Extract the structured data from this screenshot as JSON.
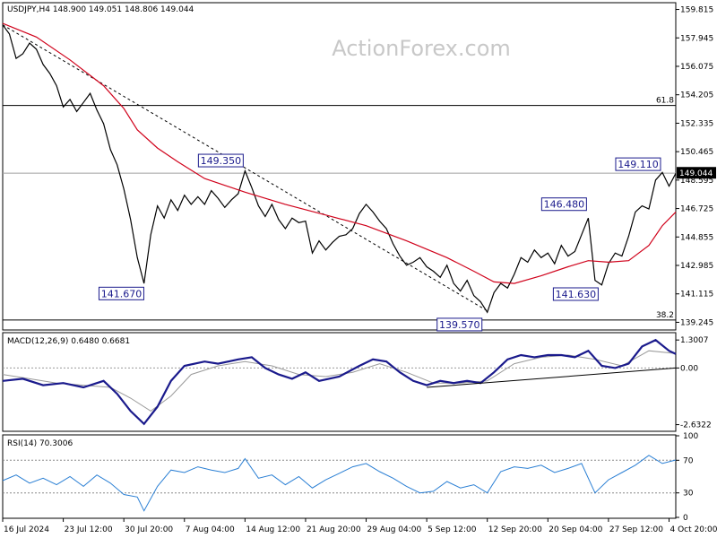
{
  "chart_data": {
    "type": "line",
    "symbol_header": "USDJPY,H4  148.900 149.051 148.806 149.044",
    "watermark": "ActionForex.com",
    "current_price": {
      "value": 149.044,
      "label": "149.044"
    },
    "price_axis": {
      "ylim": [
        138.8,
        160.2
      ],
      "ticks": [
        {
          "v": 159.815,
          "label": "159.815"
        },
        {
          "v": 157.945,
          "label": "157.945"
        },
        {
          "v": 156.075,
          "label": "156.075"
        },
        {
          "v": 154.205,
          "label": "154.205"
        },
        {
          "v": 152.335,
          "label": "152.335"
        },
        {
          "v": 150.465,
          "label": "150.465"
        },
        {
          "v": 148.595,
          "label": "148.595"
        },
        {
          "v": 146.725,
          "label": "146.725"
        },
        {
          "v": 144.855,
          "label": "144.855"
        },
        {
          "v": 142.985,
          "label": "142.985"
        },
        {
          "v": 141.115,
          "label": "141.115"
        },
        {
          "v": 139.245,
          "label": "139.245"
        }
      ]
    },
    "x_axis": {
      "range": [
        0,
        100
      ],
      "labels": [
        {
          "x": 0,
          "label": "16 Jul 2024"
        },
        {
          "x": 9,
          "label": "23 Jul 12:00"
        },
        {
          "x": 18,
          "label": "30 Jul 20:00"
        },
        {
          "x": 27,
          "label": "7 Aug 04:00"
        },
        {
          "x": 36,
          "label": "14 Aug 12:00"
        },
        {
          "x": 45,
          "label": "21 Aug 20:00"
        },
        {
          "x": 54,
          "label": "29 Aug 04:00"
        },
        {
          "x": 63,
          "label": "5 Sep 12:00"
        },
        {
          "x": 72,
          "label": "12 Sep 20:00"
        },
        {
          "x": 81,
          "label": "20 Sep 04:00"
        },
        {
          "x": 90,
          "label": "27 Sep 12:00"
        },
        {
          "x": 99,
          "label": "4 Oct 20:00"
        }
      ]
    },
    "price_series": [
      [
        0,
        158.8
      ],
      [
        1,
        158.2
      ],
      [
        2,
        156.6
      ],
      [
        3,
        156.9
      ],
      [
        4,
        157.6
      ],
      [
        5,
        157.2
      ],
      [
        6,
        156.2
      ],
      [
        7,
        155.6
      ],
      [
        8,
        154.8
      ],
      [
        9,
        153.4
      ],
      [
        10,
        153.9
      ],
      [
        11,
        153.1
      ],
      [
        12,
        153.7
      ],
      [
        13,
        154.3
      ],
      [
        14,
        153.2
      ],
      [
        15,
        152.3
      ],
      [
        16,
        150.6
      ],
      [
        17,
        149.6
      ],
      [
        18,
        148.0
      ],
      [
        19,
        146.0
      ],
      [
        20,
        143.5
      ],
      [
        21,
        141.8
      ],
      [
        22,
        145.0
      ],
      [
        23,
        146.9
      ],
      [
        24,
        146.1
      ],
      [
        25,
        147.3
      ],
      [
        26,
        146.6
      ],
      [
        27,
        147.6
      ],
      [
        28,
        147.0
      ],
      [
        29,
        147.5
      ],
      [
        30,
        147.0
      ],
      [
        31,
        147.9
      ],
      [
        32,
        147.4
      ],
      [
        33,
        146.8
      ],
      [
        34,
        147.3
      ],
      [
        35,
        147.7
      ],
      [
        36,
        149.2
      ],
      [
        37,
        148.1
      ],
      [
        38,
        146.9
      ],
      [
        39,
        146.2
      ],
      [
        40,
        147.0
      ],
      [
        41,
        146.0
      ],
      [
        42,
        145.4
      ],
      [
        43,
        146.1
      ],
      [
        44,
        145.8
      ],
      [
        45,
        145.9
      ],
      [
        46,
        143.8
      ],
      [
        47,
        144.6
      ],
      [
        48,
        144.0
      ],
      [
        49,
        144.5
      ],
      [
        50,
        144.9
      ],
      [
        51,
        145.0
      ],
      [
        52,
        145.4
      ],
      [
        53,
        146.4
      ],
      [
        54,
        147.0
      ],
      [
        55,
        146.5
      ],
      [
        56,
        145.9
      ],
      [
        57,
        145.4
      ],
      [
        58,
        144.4
      ],
      [
        59,
        143.6
      ],
      [
        60,
        143.0
      ],
      [
        61,
        143.2
      ],
      [
        62,
        143.5
      ],
      [
        63,
        142.9
      ],
      [
        64,
        142.6
      ],
      [
        65,
        142.2
      ],
      [
        66,
        143.0
      ],
      [
        67,
        141.8
      ],
      [
        68,
        141.3
      ],
      [
        69,
        142.0
      ],
      [
        70,
        141.0
      ],
      [
        71,
        140.6
      ],
      [
        72,
        139.9
      ],
      [
        73,
        141.2
      ],
      [
        74,
        141.8
      ],
      [
        75,
        141.5
      ],
      [
        76,
        142.4
      ],
      [
        77,
        143.5
      ],
      [
        78,
        143.2
      ],
      [
        79,
        144.0
      ],
      [
        80,
        143.5
      ],
      [
        81,
        143.8
      ],
      [
        82,
        143.1
      ],
      [
        83,
        144.3
      ],
      [
        84,
        143.6
      ],
      [
        85,
        143.9
      ],
      [
        86,
        145.0
      ],
      [
        87,
        146.1
      ],
      [
        88,
        142.0
      ],
      [
        89,
        141.7
      ],
      [
        90,
        143.1
      ],
      [
        91,
        143.8
      ],
      [
        92,
        143.6
      ],
      [
        93,
        144.9
      ],
      [
        94,
        146.5
      ],
      [
        95,
        146.9
      ],
      [
        96,
        146.7
      ],
      [
        97,
        148.6
      ],
      [
        98,
        149.1
      ],
      [
        99,
        148.2
      ],
      [
        100,
        149.04
      ]
    ],
    "ma_series": [
      [
        0,
        158.9
      ],
      [
        5,
        158.0
      ],
      [
        10,
        156.5
      ],
      [
        15,
        154.8
      ],
      [
        18,
        153.3
      ],
      [
        20,
        151.9
      ],
      [
        23,
        150.7
      ],
      [
        26,
        149.8
      ],
      [
        30,
        148.7
      ],
      [
        36,
        147.8
      ],
      [
        42,
        147.0
      ],
      [
        48,
        146.3
      ],
      [
        54,
        145.6
      ],
      [
        60,
        144.6
      ],
      [
        66,
        143.5
      ],
      [
        70,
        142.6
      ],
      [
        73,
        141.9
      ],
      [
        76,
        141.8
      ],
      [
        80,
        142.3
      ],
      [
        84,
        142.9
      ],
      [
        87,
        143.3
      ],
      [
        90,
        143.2
      ],
      [
        93,
        143.3
      ],
      [
        96,
        144.3
      ],
      [
        98,
        145.6
      ],
      [
        100,
        146.5
      ]
    ],
    "trendline": {
      "from": [
        0,
        158.8
      ],
      "to": [
        72,
        140.0
      ]
    },
    "horizontal_lines": [
      {
        "price": 153.5,
        "label": "61.8"
      },
      {
        "price": 149.05,
        "label": ""
      },
      {
        "price": 139.4,
        "label": "38.2"
      }
    ],
    "pivot_labels": [
      {
        "x": 21.5,
        "price": 141.67,
        "label": "141.670",
        "anchor": "below"
      },
      {
        "x": 36,
        "price": 149.35,
        "label": "149.350",
        "anchor": "above"
      },
      {
        "x": 72,
        "price": 139.57,
        "label": "139.570",
        "anchor": "below"
      },
      {
        "x": 87,
        "price": 146.48,
        "label": "146.480",
        "anchor": "above"
      },
      {
        "x": 89,
        "price": 141.63,
        "label": "141.630",
        "anchor": "below"
      },
      {
        "x": 98,
        "price": 149.11,
        "label": "149.110",
        "anchor": "above"
      }
    ],
    "macd": {
      "title": "MACD(12,26,9) 0.6480 0.6681",
      "ylim": [
        -2.9,
        1.6
      ],
      "ticks": [
        {
          "v": 1.3007,
          "label": "1.3007"
        },
        {
          "v": 0.0,
          "label": "0.00"
        },
        {
          "v": -2.6322,
          "label": "-2.6322"
        }
      ],
      "main": [
        [
          0,
          -0.6
        ],
        [
          3,
          -0.5
        ],
        [
          6,
          -0.8
        ],
        [
          9,
          -0.7
        ],
        [
          12,
          -0.9
        ],
        [
          15,
          -0.6
        ],
        [
          17,
          -1.2
        ],
        [
          19,
          -2.0
        ],
        [
          21,
          -2.6
        ],
        [
          23,
          -1.8
        ],
        [
          25,
          -0.6
        ],
        [
          27,
          0.1
        ],
        [
          30,
          0.3
        ],
        [
          32,
          0.2
        ],
        [
          35,
          0.4
        ],
        [
          37,
          0.5
        ],
        [
          39,
          0.0
        ],
        [
          41,
          -0.3
        ],
        [
          43,
          -0.5
        ],
        [
          45,
          -0.2
        ],
        [
          47,
          -0.6
        ],
        [
          50,
          -0.4
        ],
        [
          53,
          0.1
        ],
        [
          55,
          0.4
        ],
        [
          57,
          0.3
        ],
        [
          59,
          -0.2
        ],
        [
          61,
          -0.6
        ],
        [
          63,
          -0.8
        ],
        [
          65,
          -0.6
        ],
        [
          67,
          -0.7
        ],
        [
          69,
          -0.6
        ],
        [
          71,
          -0.7
        ],
        [
          73,
          -0.2
        ],
        [
          75,
          0.4
        ],
        [
          77,
          0.6
        ],
        [
          79,
          0.5
        ],
        [
          81,
          0.6
        ],
        [
          83,
          0.6
        ],
        [
          85,
          0.5
        ],
        [
          87,
          0.8
        ],
        [
          89,
          0.1
        ],
        [
          91,
          0.0
        ],
        [
          93,
          0.2
        ],
        [
          95,
          1.0
        ],
        [
          97,
          1.3
        ],
        [
          99,
          0.8
        ],
        [
          100,
          0.65
        ]
      ],
      "signal": [
        [
          0,
          -0.3
        ],
        [
          4,
          -0.5
        ],
        [
          8,
          -0.7
        ],
        [
          12,
          -0.8
        ],
        [
          16,
          -0.9
        ],
        [
          19,
          -1.4
        ],
        [
          22,
          -2.0
        ],
        [
          25,
          -1.3
        ],
        [
          28,
          -0.3
        ],
        [
          32,
          0.1
        ],
        [
          36,
          0.3
        ],
        [
          40,
          0.1
        ],
        [
          44,
          -0.3
        ],
        [
          48,
          -0.4
        ],
        [
          52,
          -0.2
        ],
        [
          56,
          0.2
        ],
        [
          60,
          -0.2
        ],
        [
          64,
          -0.7
        ],
        [
          68,
          -0.7
        ],
        [
          72,
          -0.6
        ],
        [
          76,
          0.2
        ],
        [
          80,
          0.5
        ],
        [
          84,
          0.6
        ],
        [
          88,
          0.4
        ],
        [
          92,
          0.1
        ],
        [
          96,
          0.8
        ],
        [
          100,
          0.67
        ]
      ],
      "trendline": {
        "from": [
          63,
          -0.9
        ],
        "to": [
          100,
          0.0
        ]
      }
    },
    "rsi": {
      "title": "RSI(14) 70.3006",
      "ylim": [
        0,
        100
      ],
      "ticks": [
        {
          "v": 100,
          "label": "100"
        },
        {
          "v": 70,
          "label": "70"
        },
        {
          "v": 30,
          "label": "30"
        },
        {
          "v": 0,
          "label": "0"
        }
      ],
      "levels": [
        70,
        30
      ],
      "series": [
        [
          0,
          45
        ],
        [
          2,
          52
        ],
        [
          4,
          42
        ],
        [
          6,
          48
        ],
        [
          8,
          40
        ],
        [
          10,
          50
        ],
        [
          12,
          38
        ],
        [
          14,
          52
        ],
        [
          16,
          42
        ],
        [
          18,
          28
        ],
        [
          20,
          25
        ],
        [
          21,
          8
        ],
        [
          23,
          38
        ],
        [
          25,
          58
        ],
        [
          27,
          55
        ],
        [
          29,
          62
        ],
        [
          31,
          58
        ],
        [
          33,
          55
        ],
        [
          35,
          60
        ],
        [
          36,
          72
        ],
        [
          38,
          48
        ],
        [
          40,
          52
        ],
        [
          42,
          40
        ],
        [
          44,
          50
        ],
        [
          46,
          36
        ],
        [
          48,
          46
        ],
        [
          50,
          54
        ],
        [
          52,
          62
        ],
        [
          54,
          66
        ],
        [
          56,
          56
        ],
        [
          58,
          48
        ],
        [
          60,
          38
        ],
        [
          62,
          30
        ],
        [
          64,
          32
        ],
        [
          66,
          44
        ],
        [
          68,
          36
        ],
        [
          70,
          40
        ],
        [
          72,
          30
        ],
        [
          74,
          56
        ],
        [
          76,
          62
        ],
        [
          78,
          60
        ],
        [
          80,
          64
        ],
        [
          82,
          55
        ],
        [
          84,
          60
        ],
        [
          86,
          66
        ],
        [
          88,
          30
        ],
        [
          90,
          46
        ],
        [
          92,
          55
        ],
        [
          94,
          64
        ],
        [
          96,
          76
        ],
        [
          98,
          66
        ],
        [
          100,
          70.3
        ]
      ]
    },
    "colors": {
      "price": "#000000",
      "ma": "#d0021b",
      "macd_main": "#1a1a8c",
      "macd_signal": "#9a9a9a",
      "grid": "#d8d8d8",
      "current_price_box": "#000000"
    }
  }
}
